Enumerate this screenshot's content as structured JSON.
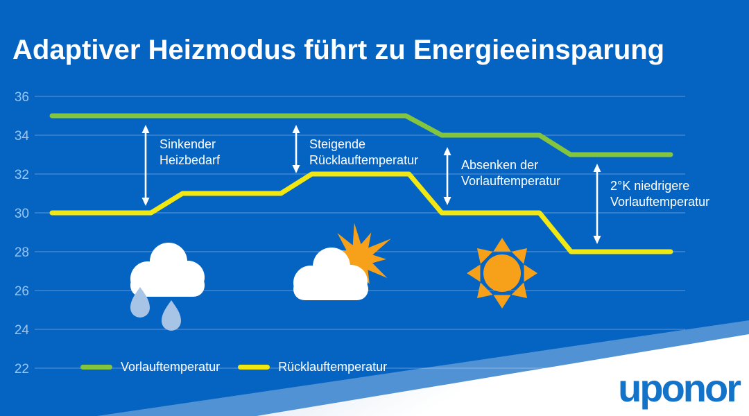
{
  "slide": {
    "title": "Adaptiver Heizmodus führt zu Energieeinsparung",
    "brand_logo": "uponor",
    "colors": {
      "background": "#0563C1",
      "grid": "#5E9AD6",
      "axis_text": "#9CC5EE",
      "vorlauf_green": "#83C53F",
      "ruecklauf_yellow": "#F1E713",
      "annotation_white": "#FFFFFF",
      "sun_orange": "#F7A11A",
      "raindrop_blue": "#A7C4E6",
      "logo_blue": "#1273C8",
      "wedge_white": "#FFFFFF"
    }
  },
  "chart_data": {
    "type": "line",
    "title": "Adaptiver Heizmodus führt zu Energieeinsparung",
    "xlabel": "",
    "ylabel": "",
    "ylim": [
      22,
      36
    ],
    "yticks": [
      36,
      34,
      32,
      30,
      28,
      26,
      24,
      22
    ],
    "grid": true,
    "legend_position": "bottom-left",
    "series": [
      {
        "name": "Vorlauftemperatur",
        "color": "#83C53F",
        "points": [
          {
            "t": 0.0,
            "v": 35
          },
          {
            "t": 0.572,
            "v": 35
          },
          {
            "t": 0.63,
            "v": 34
          },
          {
            "t": 0.788,
            "v": 34
          },
          {
            "t": 0.838,
            "v": 33
          },
          {
            "t": 1.0,
            "v": 33
          }
        ]
      },
      {
        "name": "Rücklauftemperatur",
        "color": "#F1E713",
        "points": [
          {
            "t": 0.0,
            "v": 30
          },
          {
            "t": 0.16,
            "v": 30
          },
          {
            "t": 0.211,
            "v": 31
          },
          {
            "t": 0.37,
            "v": 31
          },
          {
            "t": 0.42,
            "v": 32
          },
          {
            "t": 0.577,
            "v": 32
          },
          {
            "t": 0.63,
            "v": 30
          },
          {
            "t": 0.788,
            "v": 30
          },
          {
            "t": 0.839,
            "v": 28
          },
          {
            "t": 1.0,
            "v": 28
          }
        ]
      }
    ],
    "annotations": [
      {
        "line1": "Sinkender",
        "line2": "Heizbedarf"
      },
      {
        "line1": "Steigende",
        "line2": "Rücklauftemperatur"
      },
      {
        "line1": "Absenken der",
        "line2": "Vorlauftemperatur"
      },
      {
        "line1": "2°K niedrigere",
        "line2": "Vorlauftemperatur"
      }
    ],
    "weather_icons": [
      "rain-cloud",
      "cloud-with-sun",
      "sun"
    ]
  },
  "legend": {
    "items": [
      {
        "label": "Vorlauftemperatur",
        "color": "#83C53F"
      },
      {
        "label": "Rücklauftemperatur",
        "color": "#F1E713"
      }
    ]
  }
}
